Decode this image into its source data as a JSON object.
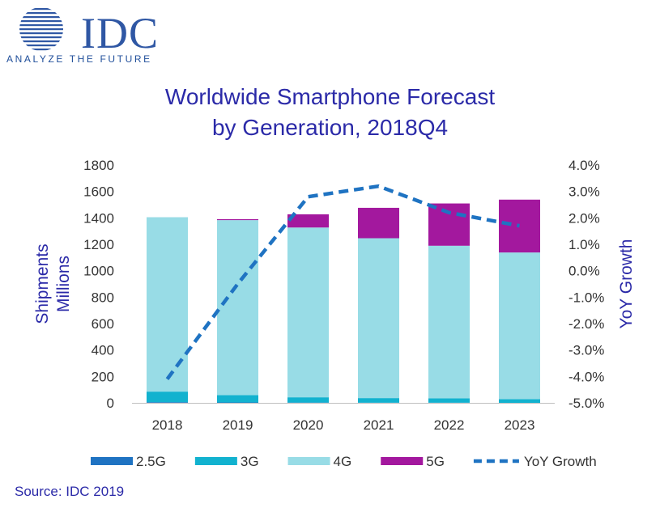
{
  "logo": {
    "text": "IDC",
    "tagline": "ANALYZE THE FUTURE",
    "color": "#2f57a4"
  },
  "source": "Source: IDC 2019",
  "chart_data": {
    "type": "bar",
    "stacked": true,
    "title_lines": [
      "Worldwide Smartphone Forecast",
      "by Generation, 2018Q4"
    ],
    "categories": [
      "2018",
      "2019",
      "2020",
      "2021",
      "2022",
      "2023"
    ],
    "ylabel_lines": [
      "Shipments",
      "Millions"
    ],
    "y2label": "YoY Growth",
    "ylim": [
      0,
      1800
    ],
    "y_ticks": [
      "0",
      "200",
      "400",
      "600",
      "800",
      "1000",
      "1200",
      "1400",
      "1600",
      "1800"
    ],
    "y2lim": [
      -5.0,
      4.0
    ],
    "y2_ticks": [
      "-5.0%",
      "-4.0%",
      "-3.0%",
      "-2.0%",
      "-1.0%",
      "0.0%",
      "1.0%",
      "2.0%",
      "3.0%",
      "4.0%"
    ],
    "grid": false,
    "legend_position": "bottom",
    "series": [
      {
        "name": "2.5G",
        "color": "#1f73c2",
        "values": [
          5,
          3,
          2,
          1,
          1,
          0
        ]
      },
      {
        "name": "3G",
        "color": "#12b2cf",
        "values": [
          80,
          55,
          40,
          35,
          33,
          28
        ]
      },
      {
        "name": "4G",
        "color": "#98dce6",
        "values": [
          1320,
          1325,
          1285,
          1210,
          1155,
          1110
        ]
      },
      {
        "name": "5G",
        "color": "#a3189e",
        "values": [
          0,
          7,
          100,
          230,
          320,
          400
        ]
      }
    ],
    "line_series": {
      "name": "YoY Growth",
      "color": "#1f73c2",
      "style": "dashed",
      "axis": "right",
      "values": [
        -4.1,
        -0.5,
        2.8,
        3.2,
        2.2,
        1.7
      ]
    }
  }
}
